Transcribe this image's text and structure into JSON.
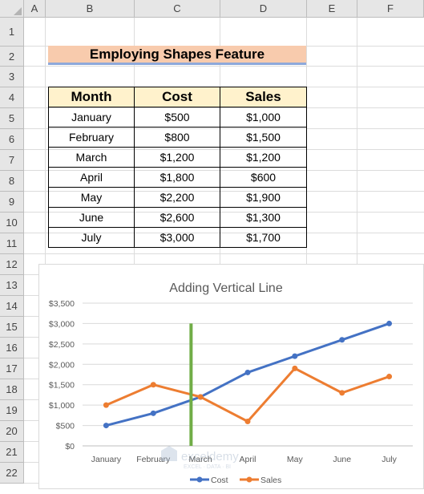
{
  "columns": [
    "A",
    "B",
    "C",
    "D",
    "E",
    "F"
  ],
  "rows": [
    "1",
    "2",
    "3",
    "4",
    "5",
    "6",
    "7",
    "8",
    "9",
    "10",
    "11",
    "12",
    "13",
    "14",
    "15",
    "16",
    "17",
    "18",
    "19",
    "20",
    "21",
    "22"
  ],
  "sheet_title": "Employing Shapes Feature",
  "table": {
    "headers": [
      "Month",
      "Cost",
      "Sales"
    ],
    "rows": [
      [
        "January",
        "$500",
        "$1,000"
      ],
      [
        "February",
        "$800",
        "$1,500"
      ],
      [
        "March",
        "$1,200",
        "$1,200"
      ],
      [
        "April",
        "$1,800",
        "$600"
      ],
      [
        "May",
        "$2,200",
        "$1,900"
      ],
      [
        "June",
        "$2,600",
        "$1,300"
      ],
      [
        "July",
        "$3,000",
        "$1,700"
      ]
    ]
  },
  "watermark": {
    "brand": "exceldemy",
    "tagline": "EXCEL · DATA · BI"
  },
  "chart_data": {
    "type": "line",
    "title": "Adding Vertical Line",
    "categories": [
      "January",
      "February",
      "March",
      "April",
      "May",
      "June",
      "July"
    ],
    "ytick_labels": [
      "$0",
      "$500",
      "$1,000",
      "$1,500",
      "$2,000",
      "$2,500",
      "$3,000",
      "$3,500"
    ],
    "ylim": [
      0,
      3500
    ],
    "grid": true,
    "legend_position": "bottom",
    "series": [
      {
        "name": "Cost",
        "color": "#4472c4",
        "values": [
          500,
          800,
          1200,
          1800,
          2200,
          2600,
          3000
        ]
      },
      {
        "name": "Sales",
        "color": "#ed7d31",
        "values": [
          1000,
          1500,
          1200,
          600,
          1900,
          1300,
          1700
        ]
      }
    ],
    "vertical_line": {
      "color": "#70ad47",
      "x_position_category": 2.3,
      "y_range": [
        0,
        3000
      ]
    }
  }
}
